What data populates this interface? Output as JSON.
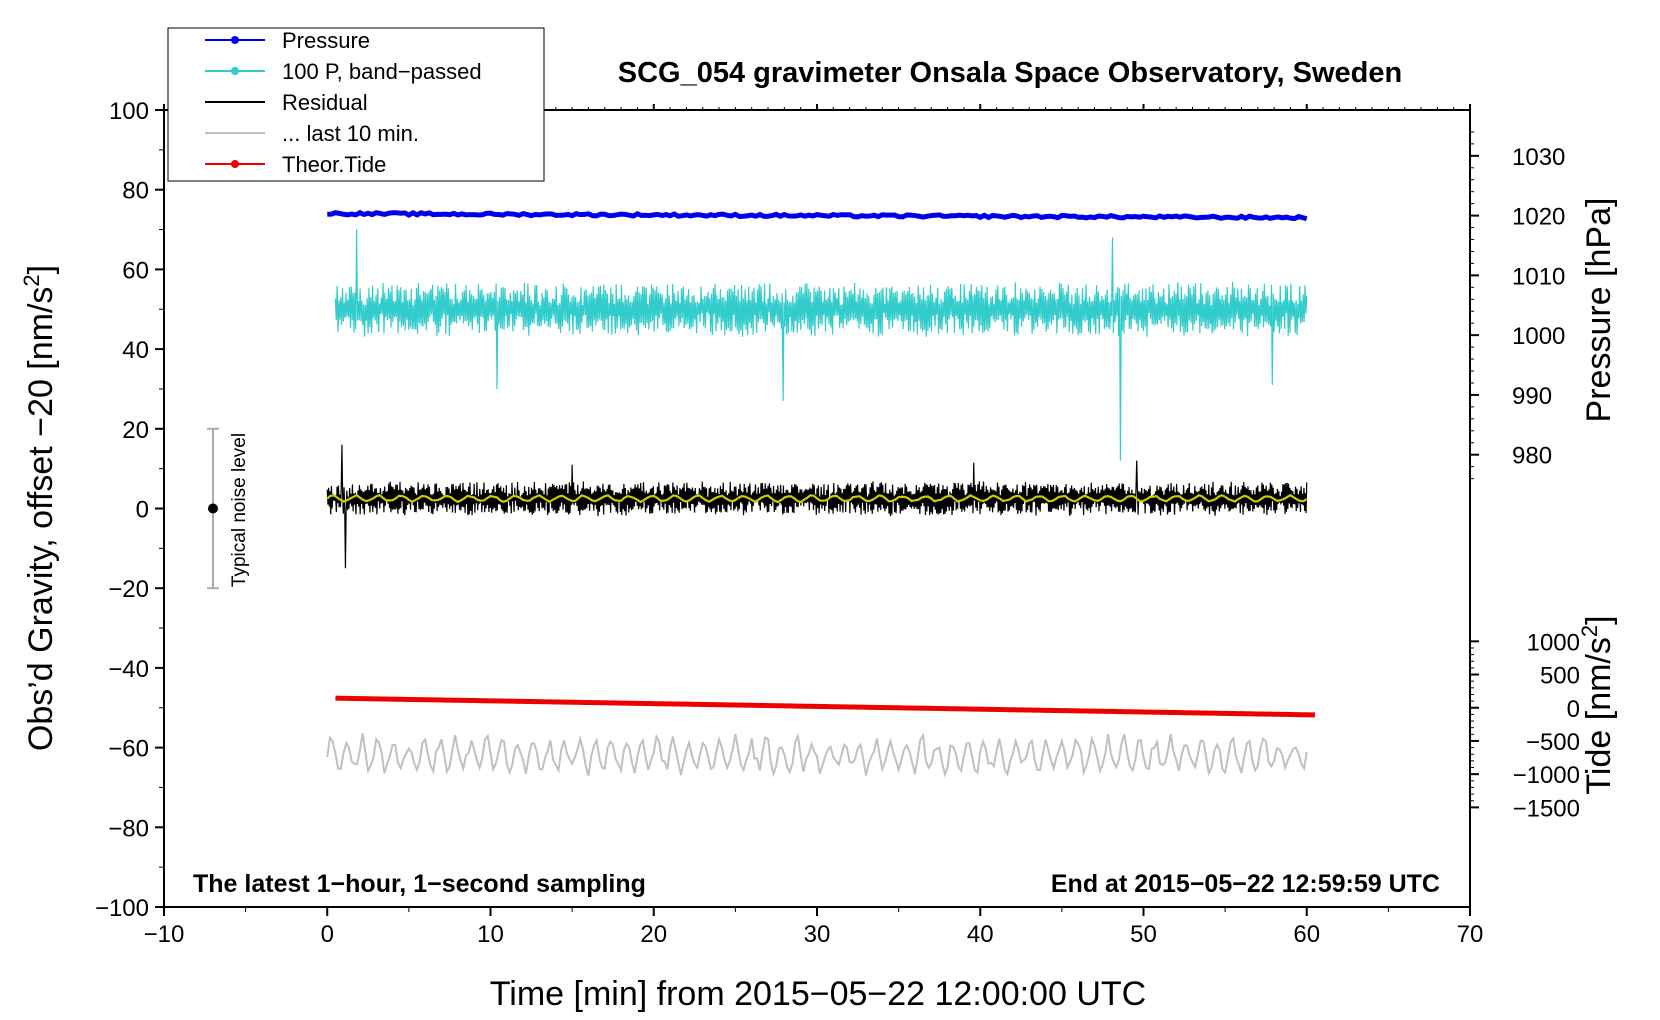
{
  "chart_data": {
    "type": "line",
    "title": "SCG_054 gravimeter Onsala Space Observatory, Sweden",
    "xlabel": "Time [min] from 2015−05−22 12:00:00 UTC",
    "ylabel_left": "Obs’d Gravity, offset −20 [nm/s",
    "ylabel_left_sup": "2",
    "ylabel_left_end": "]",
    "ylabel_pressure": "Pressure [hPa]",
    "ylabel_tide": "Tide [nm/s",
    "ylabel_tide_sup": "2",
    "ylabel_tide_end": "]",
    "xlim": [
      -10,
      70
    ],
    "ylim_left": [
      -100,
      100
    ],
    "x_ticks": [
      {
        "v": -10,
        "label": "−10"
      },
      {
        "v": 0,
        "label": "0"
      },
      {
        "v": 10,
        "label": "10"
      },
      {
        "v": 20,
        "label": "20"
      },
      {
        "v": 30,
        "label": "30"
      },
      {
        "v": 40,
        "label": "40"
      },
      {
        "v": 50,
        "label": "50"
      },
      {
        "v": 60,
        "label": "60"
      },
      {
        "v": 70,
        "label": "70"
      }
    ],
    "y_ticks_left": [
      {
        "v": 100,
        "label": "100"
      },
      {
        "v": 80,
        "label": "80"
      },
      {
        "v": 60,
        "label": "60"
      },
      {
        "v": 40,
        "label": "40"
      },
      {
        "v": 20,
        "label": "20"
      },
      {
        "v": 0,
        "label": "0"
      },
      {
        "v": -20,
        "label": "−20"
      },
      {
        "v": -40,
        "label": "−40"
      },
      {
        "v": -60,
        "label": "−60"
      },
      {
        "v": -80,
        "label": "−80"
      },
      {
        "v": -100,
        "label": "−100"
      }
    ],
    "pressure_axis": {
      "left_value_at_1020": 73.5,
      "left_units_per_hPa": 1.5,
      "ticks": [
        {
          "v": 1030,
          "label": "1030"
        },
        {
          "v": 1020,
          "label": "1020"
        },
        {
          "v": 1010,
          "label": "1010"
        },
        {
          "v": 1000,
          "label": "1000"
        },
        {
          "v": 990,
          "label": "990"
        },
        {
          "v": 980,
          "label": "980"
        }
      ]
    },
    "tide_axis": {
      "left_value_at_0": -50,
      "left_units_per_nms2": 0.0166667,
      "ticks": [
        {
          "v": 1000,
          "label": "1000"
        },
        {
          "v": 500,
          "label": "500"
        },
        {
          "v": 0,
          "label": "0"
        },
        {
          "v": -500,
          "label": "−500"
        },
        {
          "v": -1000,
          "label": "−1000"
        },
        {
          "v": -1500,
          "label": "−1500"
        }
      ]
    },
    "series": [
      {
        "name": "Pressure",
        "color": "#0000ee",
        "kind": "flat",
        "x_start": 0,
        "x_end": 60,
        "y_start": 74.0,
        "y_end": 73.0,
        "noise": 0.3
      },
      {
        "name": "100 P, band−passed",
        "color": "#33cccc",
        "kind": "noisy",
        "x_start": 0.5,
        "x_end": 60,
        "center": 50,
        "amp": 6.5,
        "n": 1100,
        "spikes": [
          {
            "x": 1.8,
            "y": 70
          },
          {
            "x": 10.4,
            "y": 30
          },
          {
            "x": 27.9,
            "y": 27
          },
          {
            "x": 48.1,
            "y": 68
          },
          {
            "x": 48.6,
            "y": 12
          },
          {
            "x": 57.9,
            "y": 31
          }
        ]
      },
      {
        "name": "Residual",
        "color": "#000000",
        "kind": "noisy",
        "x_start": 0,
        "x_end": 60,
        "center": 2.5,
        "amp": 4.0,
        "n": 1400,
        "spikes": [
          {
            "x": 1.1,
            "y": -15
          },
          {
            "x": 0.9,
            "y": 16
          },
          {
            "x": 15.0,
            "y": 11
          },
          {
            "x": 39.6,
            "y": 11.5
          },
          {
            "x": 49.6,
            "y": 12
          }
        ]
      },
      {
        "name": "... last 10 min.",
        "color": "#c0c0c0",
        "kind": "wave",
        "x_start": 0,
        "x_end": 60,
        "center": -62,
        "amp": 4.0,
        "n": 360
      },
      {
        "name": "Smoothed residual",
        "color": "#cccc00",
        "kind": "smooth",
        "x_start": 0,
        "x_end": 60,
        "center": 2.5,
        "amp": 0.9,
        "n": 300
      },
      {
        "name": "Theor.Tide",
        "color": "#ee0000",
        "kind": "flat",
        "x_start": 0.5,
        "x_end": 60.5,
        "y_start": -47.6,
        "y_end": -51.8,
        "noise": 0
      }
    ],
    "noise_bar": {
      "x": -7,
      "y_low": -20,
      "y_high": 20,
      "y_center": 0,
      "label": "Typical noise level"
    },
    "legend": [
      {
        "label": "Pressure",
        "color": "#0000ee",
        "marker": true
      },
      {
        "label": "100 P, band−passed",
        "color": "#33cccc",
        "marker": true
      },
      {
        "label": "Residual",
        "color": "#000000",
        "marker": false
      },
      {
        "label": "... last 10 min.",
        "color": "#c0c0c0",
        "marker": false
      },
      {
        "label": "Theor.Tide",
        "color": "#ee0000",
        "marker": true
      }
    ],
    "annotations": {
      "bottom_left": "The latest 1−hour, 1−second sampling",
      "bottom_right": "End at 2015−05−22 12:59:59 UTC"
    }
  }
}
